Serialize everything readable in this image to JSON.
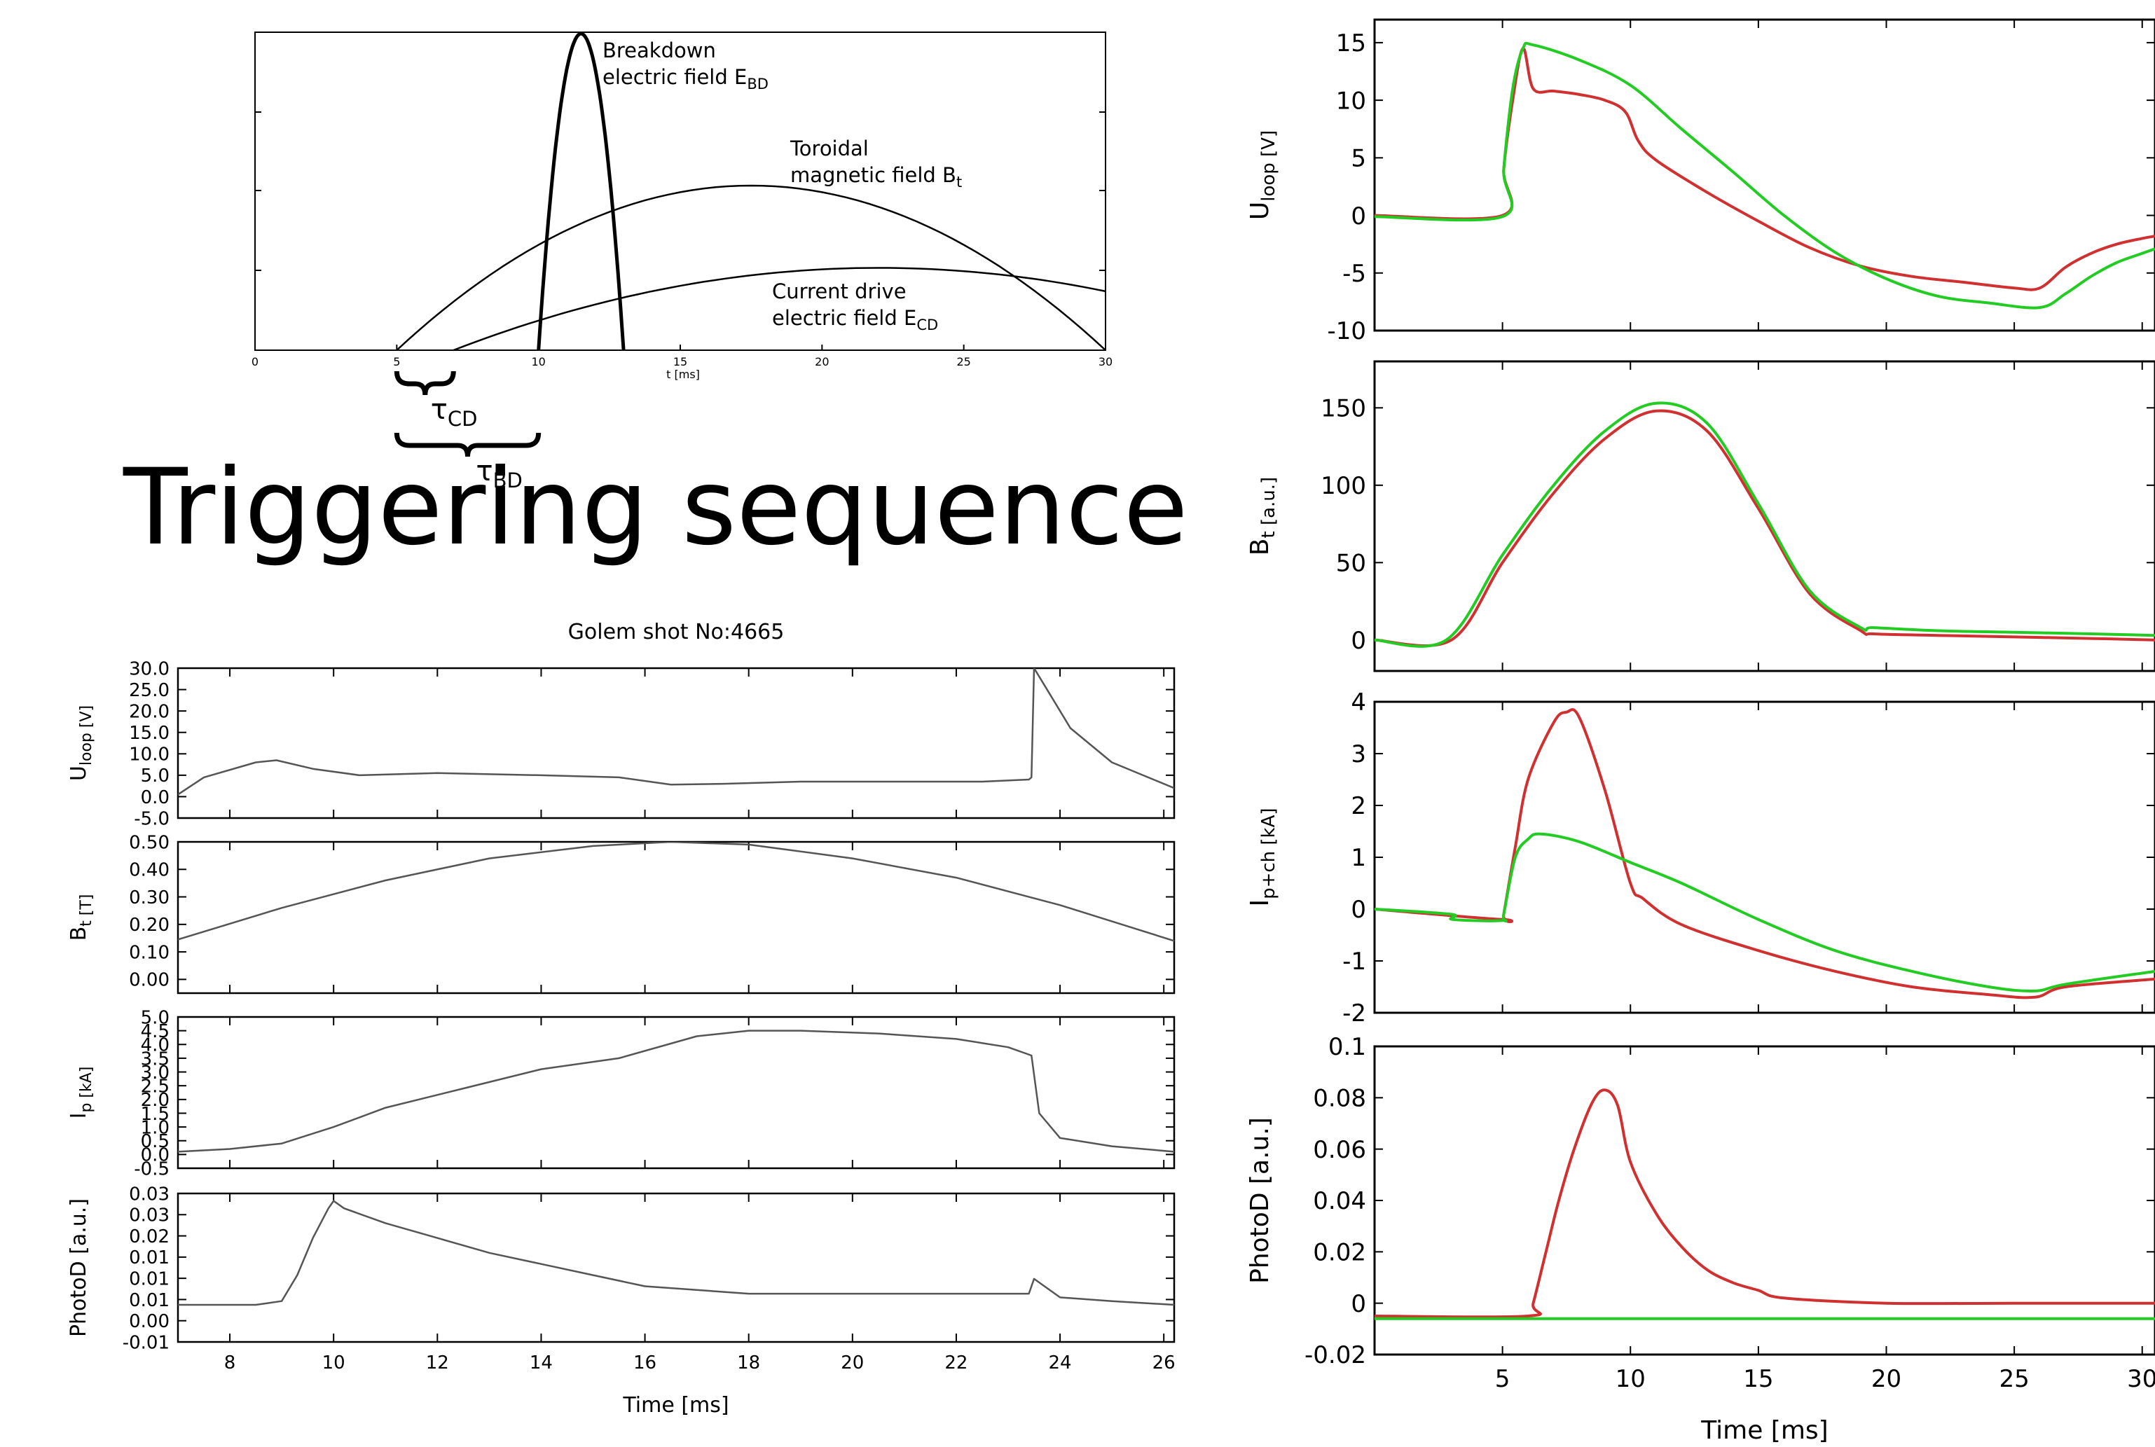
{
  "slide_title": "Triggering sequence",
  "colors": {
    "shot1": "#d03030",
    "shot2": "#22cc22",
    "mono": "#555555",
    "photo_mono": "#111111"
  },
  "chart_data": [
    {
      "id": "schematic",
      "type": "line",
      "xlabel": "t [ms]",
      "xlim": [
        0,
        30
      ],
      "xticks": [
        0,
        5,
        10,
        15,
        20,
        25,
        30
      ],
      "grid": false,
      "series": [
        {
          "name": "Breakdown electric field E_BD",
          "x": [
            10,
            11.5,
            13
          ],
          "y": [
            0,
            1,
            0
          ]
        },
        {
          "name": "Toroidal magnetic field B_t",
          "x": [
            5,
            17.5,
            30
          ],
          "y": [
            0,
            0.52,
            0
          ]
        },
        {
          "name": "Current drive electric field E_CD",
          "x": [
            7,
            22,
            30
          ],
          "y": [
            0,
            0.26,
            0.2
          ]
        }
      ],
      "annotations": [
        {
          "text": "Breakdown electric field E",
          "sub": "BD"
        },
        {
          "text": "Toroidal magnetic field B",
          "sub": "t"
        },
        {
          "text": "Current drive electric field E",
          "sub": "CD"
        }
      ],
      "intervals": [
        {
          "label": "τ",
          "sub": "CD",
          "from_ms": 5,
          "to_ms": 7
        },
        {
          "label": "τ",
          "sub": "BD",
          "from_ms": 5,
          "to_ms": 10
        }
      ]
    },
    {
      "id": "golem_shot",
      "type": "line",
      "title": "Golem shot No:4665",
      "xlabel": "Time [ms]",
      "xlim": [
        7,
        26.2
      ],
      "xticks": [
        8,
        10,
        12,
        14,
        16,
        18,
        20,
        22,
        24,
        26
      ],
      "panels": [
        {
          "ylabel": "U_loop [V]",
          "ylim": [
            -5,
            30
          ],
          "yticks": [
            "-5.0",
            "0.0",
            "5.0",
            "10.0",
            "15.0",
            "20.0",
            "25.0",
            "30.0"
          ],
          "series": [
            {
              "x": [
                7,
                7.5,
                8.5,
                8.9,
                9.6,
                10.5,
                12,
                14,
                15.5,
                16.5,
                17.5,
                19,
                21,
                22.5,
                23.4,
                23.45,
                23.5,
                23.8,
                24.2,
                25,
                26.2
              ],
              "y": [
                0.5,
                4.5,
                8,
                8.5,
                6.5,
                5,
                5.5,
                5,
                4.5,
                2.8,
                3,
                3.5,
                3.5,
                3.5,
                4,
                4.5,
                30,
                24,
                16,
                8,
                2
              ]
            }
          ]
        },
        {
          "ylabel": "B_t [T]",
          "ylim": [
            -0.05,
            0.5
          ],
          "yticks": [
            "0.00",
            "0.10",
            "0.20",
            "0.30",
            "0.40",
            "0.50"
          ],
          "series": [
            {
              "x": [
                7,
                9,
                11,
                13,
                15,
                16.5,
                18,
                20,
                22,
                24,
                26.2
              ],
              "y": [
                0.145,
                0.26,
                0.36,
                0.44,
                0.485,
                0.5,
                0.49,
                0.44,
                0.37,
                0.27,
                0.14
              ]
            }
          ]
        },
        {
          "ylabel": "I_p [kA]",
          "ylim": [
            -0.5,
            5.0
          ],
          "yticks": [
            "-0.5",
            "0.0",
            "0.5",
            "1.0",
            "1.5",
            "2.0",
            "2.5",
            "3.0",
            "3.5",
            "4.0",
            "4.5",
            "5.0"
          ],
          "series": [
            {
              "x": [
                7,
                8,
                9,
                10,
                11,
                12.5,
                14,
                15.5,
                17,
                18,
                19,
                20.5,
                22,
                23,
                23.45,
                23.6,
                24,
                25,
                26.2
              ],
              "y": [
                0.1,
                0.2,
                0.4,
                1.0,
                1.7,
                2.4,
                3.1,
                3.5,
                4.3,
                4.5,
                4.5,
                4.4,
                4.2,
                3.9,
                3.6,
                1.5,
                0.6,
                0.3,
                0.1
              ]
            }
          ]
        },
        {
          "ylabel": "PhotoD [a.u.]",
          "ylim": [
            -0.01,
            0.03
          ],
          "yticks": [
            "-0.01",
            "0.00",
            "0.01",
            "0.01",
            "0.01",
            "0.02",
            "0.03",
            "0.03"
          ],
          "series": [
            {
              "x": [
                7,
                8.5,
                9.0,
                9.3,
                9.6,
                9.9,
                10.0,
                10.2,
                11,
                12,
                13,
                14,
                15,
                16,
                17,
                18,
                19,
                20,
                21,
                22,
                23,
                23.4,
                23.5,
                24,
                25,
                26.2
              ],
              "y": [
                0.0,
                0.0,
                0.001,
                0.008,
                0.018,
                0.026,
                0.028,
                0.026,
                0.022,
                0.018,
                0.014,
                0.011,
                0.008,
                0.005,
                0.004,
                0.003,
                0.003,
                0.003,
                0.003,
                0.003,
                0.003,
                0.003,
                0.007,
                0.002,
                0.001,
                0.0
              ]
            }
          ]
        }
      ]
    },
    {
      "id": "comparison",
      "type": "line",
      "xlabel": "Time [ms]",
      "xlim": [
        0,
        30.5
      ],
      "xticks": [
        5,
        10,
        15,
        20,
        25,
        30
      ],
      "panels": [
        {
          "ylabel": "U_loop [V]",
          "ylim": [
            -10,
            17
          ],
          "yticks": [
            "-10",
            "-5",
            "0",
            "5",
            "10",
            "15"
          ],
          "series": [
            {
              "x": [
                0,
                5,
                5.05,
                5.4,
                5.8,
                6.2,
                7,
                8,
                9,
                9.8,
                10.3,
                11,
                13,
                15,
                17,
                19,
                21,
                23,
                25,
                26,
                27,
                28,
                29,
                30,
                30.5
              ],
              "y": [
                0,
                0,
                4,
                10,
                14.5,
                11,
                10.8,
                10.5,
                10,
                9,
                6.5,
                4.8,
                2,
                -0.5,
                -2.8,
                -4.4,
                -5.3,
                -5.8,
                -6.3,
                -6.3,
                -4.5,
                -3.3,
                -2.5,
                -2,
                -1.8
              ]
            },
            {
              "x": [
                0,
                5,
                5.05,
                5.4,
                5.8,
                6.2,
                8,
                10,
                12,
                14,
                16,
                18,
                20,
                22,
                24,
                26,
                27,
                28,
                29,
                30,
                30.5
              ],
              "y": [
                -0.1,
                -0.1,
                4,
                11,
                14.5,
                14.8,
                13.5,
                11.3,
                7.5,
                3.8,
                0,
                -3.2,
                -5.5,
                -7,
                -7.6,
                -8,
                -6.8,
                -5.3,
                -4.1,
                -3.3,
                -2.9
              ]
            }
          ]
        },
        {
          "ylabel": "B_t [a.u.]",
          "ylim": [
            -20,
            180
          ],
          "yticks": [
            "0",
            "50",
            "100",
            "150"
          ],
          "series": [
            {
              "x": [
                0,
                3,
                5,
                7,
                9,
                11,
                13,
                15,
                17,
                19,
                19.5,
                22,
                25,
                28,
                30.5
              ],
              "y": [
                0,
                0,
                50,
                95,
                130,
                148,
                135,
                85,
                30,
                6,
                4,
                3,
                2,
                1,
                0
              ]
            },
            {
              "x": [
                0,
                2.8,
                5,
                7,
                9,
                11,
                13,
                15,
                17,
                19,
                19.5,
                22,
                25,
                28,
                30.5
              ],
              "y": [
                0,
                0,
                55,
                100,
                135,
                153,
                140,
                88,
                32,
                8,
                8,
                6,
                5,
                4,
                3
              ]
            }
          ]
        },
        {
          "ylabel": "I_p+ch [kA]",
          "ylim": [
            -2,
            4
          ],
          "yticks": [
            "-2",
            "-1",
            "0",
            "1",
            "2",
            "3",
            "4"
          ],
          "series": [
            {
              "x": [
                0,
                5,
                5.05,
                5.5,
                6,
                7,
                7.5,
                8,
                9,
                10,
                10.5,
                12,
                15,
                18,
                21,
                24,
                25.8,
                27,
                30.5
              ],
              "y": [
                0,
                -0.2,
                -0.1,
                1.2,
                2.5,
                3.6,
                3.8,
                3.7,
                2.3,
                0.5,
                0.2,
                -0.3,
                -0.8,
                -1.2,
                -1.5,
                -1.65,
                -1.7,
                -1.5,
                -1.35
              ]
            },
            {
              "x": [
                0,
                3,
                3.05,
                5,
                5.05,
                5.5,
                6,
                6.5,
                8,
                10,
                12,
                15,
                18,
                21,
                24,
                25.8,
                27,
                30.5
              ],
              "y": [
                0,
                -0.1,
                -0.2,
                -0.22,
                -0.1,
                1.0,
                1.35,
                1.45,
                1.3,
                0.9,
                0.5,
                -0.2,
                -0.8,
                -1.2,
                -1.5,
                -1.58,
                -1.45,
                -1.2
              ]
            }
          ]
        },
        {
          "ylabel": "PhotoD [a.u.]",
          "ylim": [
            -0.02,
            0.1
          ],
          "yticks": [
            "-0.02",
            "0",
            "0.02",
            "0.04",
            "0.06",
            "0.08",
            "0.1"
          ],
          "series": [
            {
              "x": [
                0,
                6,
                6.2,
                6.7,
                7.2,
                7.8,
                8.5,
                9,
                9.5,
                10,
                11,
                12,
                13,
                14,
                15,
                16,
                20,
                25,
                30.5
              ],
              "y": [
                -0.005,
                -0.005,
                0.0,
                0.02,
                0.04,
                0.06,
                0.078,
                0.083,
                0.077,
                0.055,
                0.035,
                0.022,
                0.013,
                0.008,
                0.005,
                0.002,
                0.0,
                0.0,
                0.0
              ]
            },
            {
              "x": [
                0,
                30.5
              ],
              "y": [
                -0.006,
                -0.006
              ]
            }
          ]
        }
      ]
    }
  ]
}
